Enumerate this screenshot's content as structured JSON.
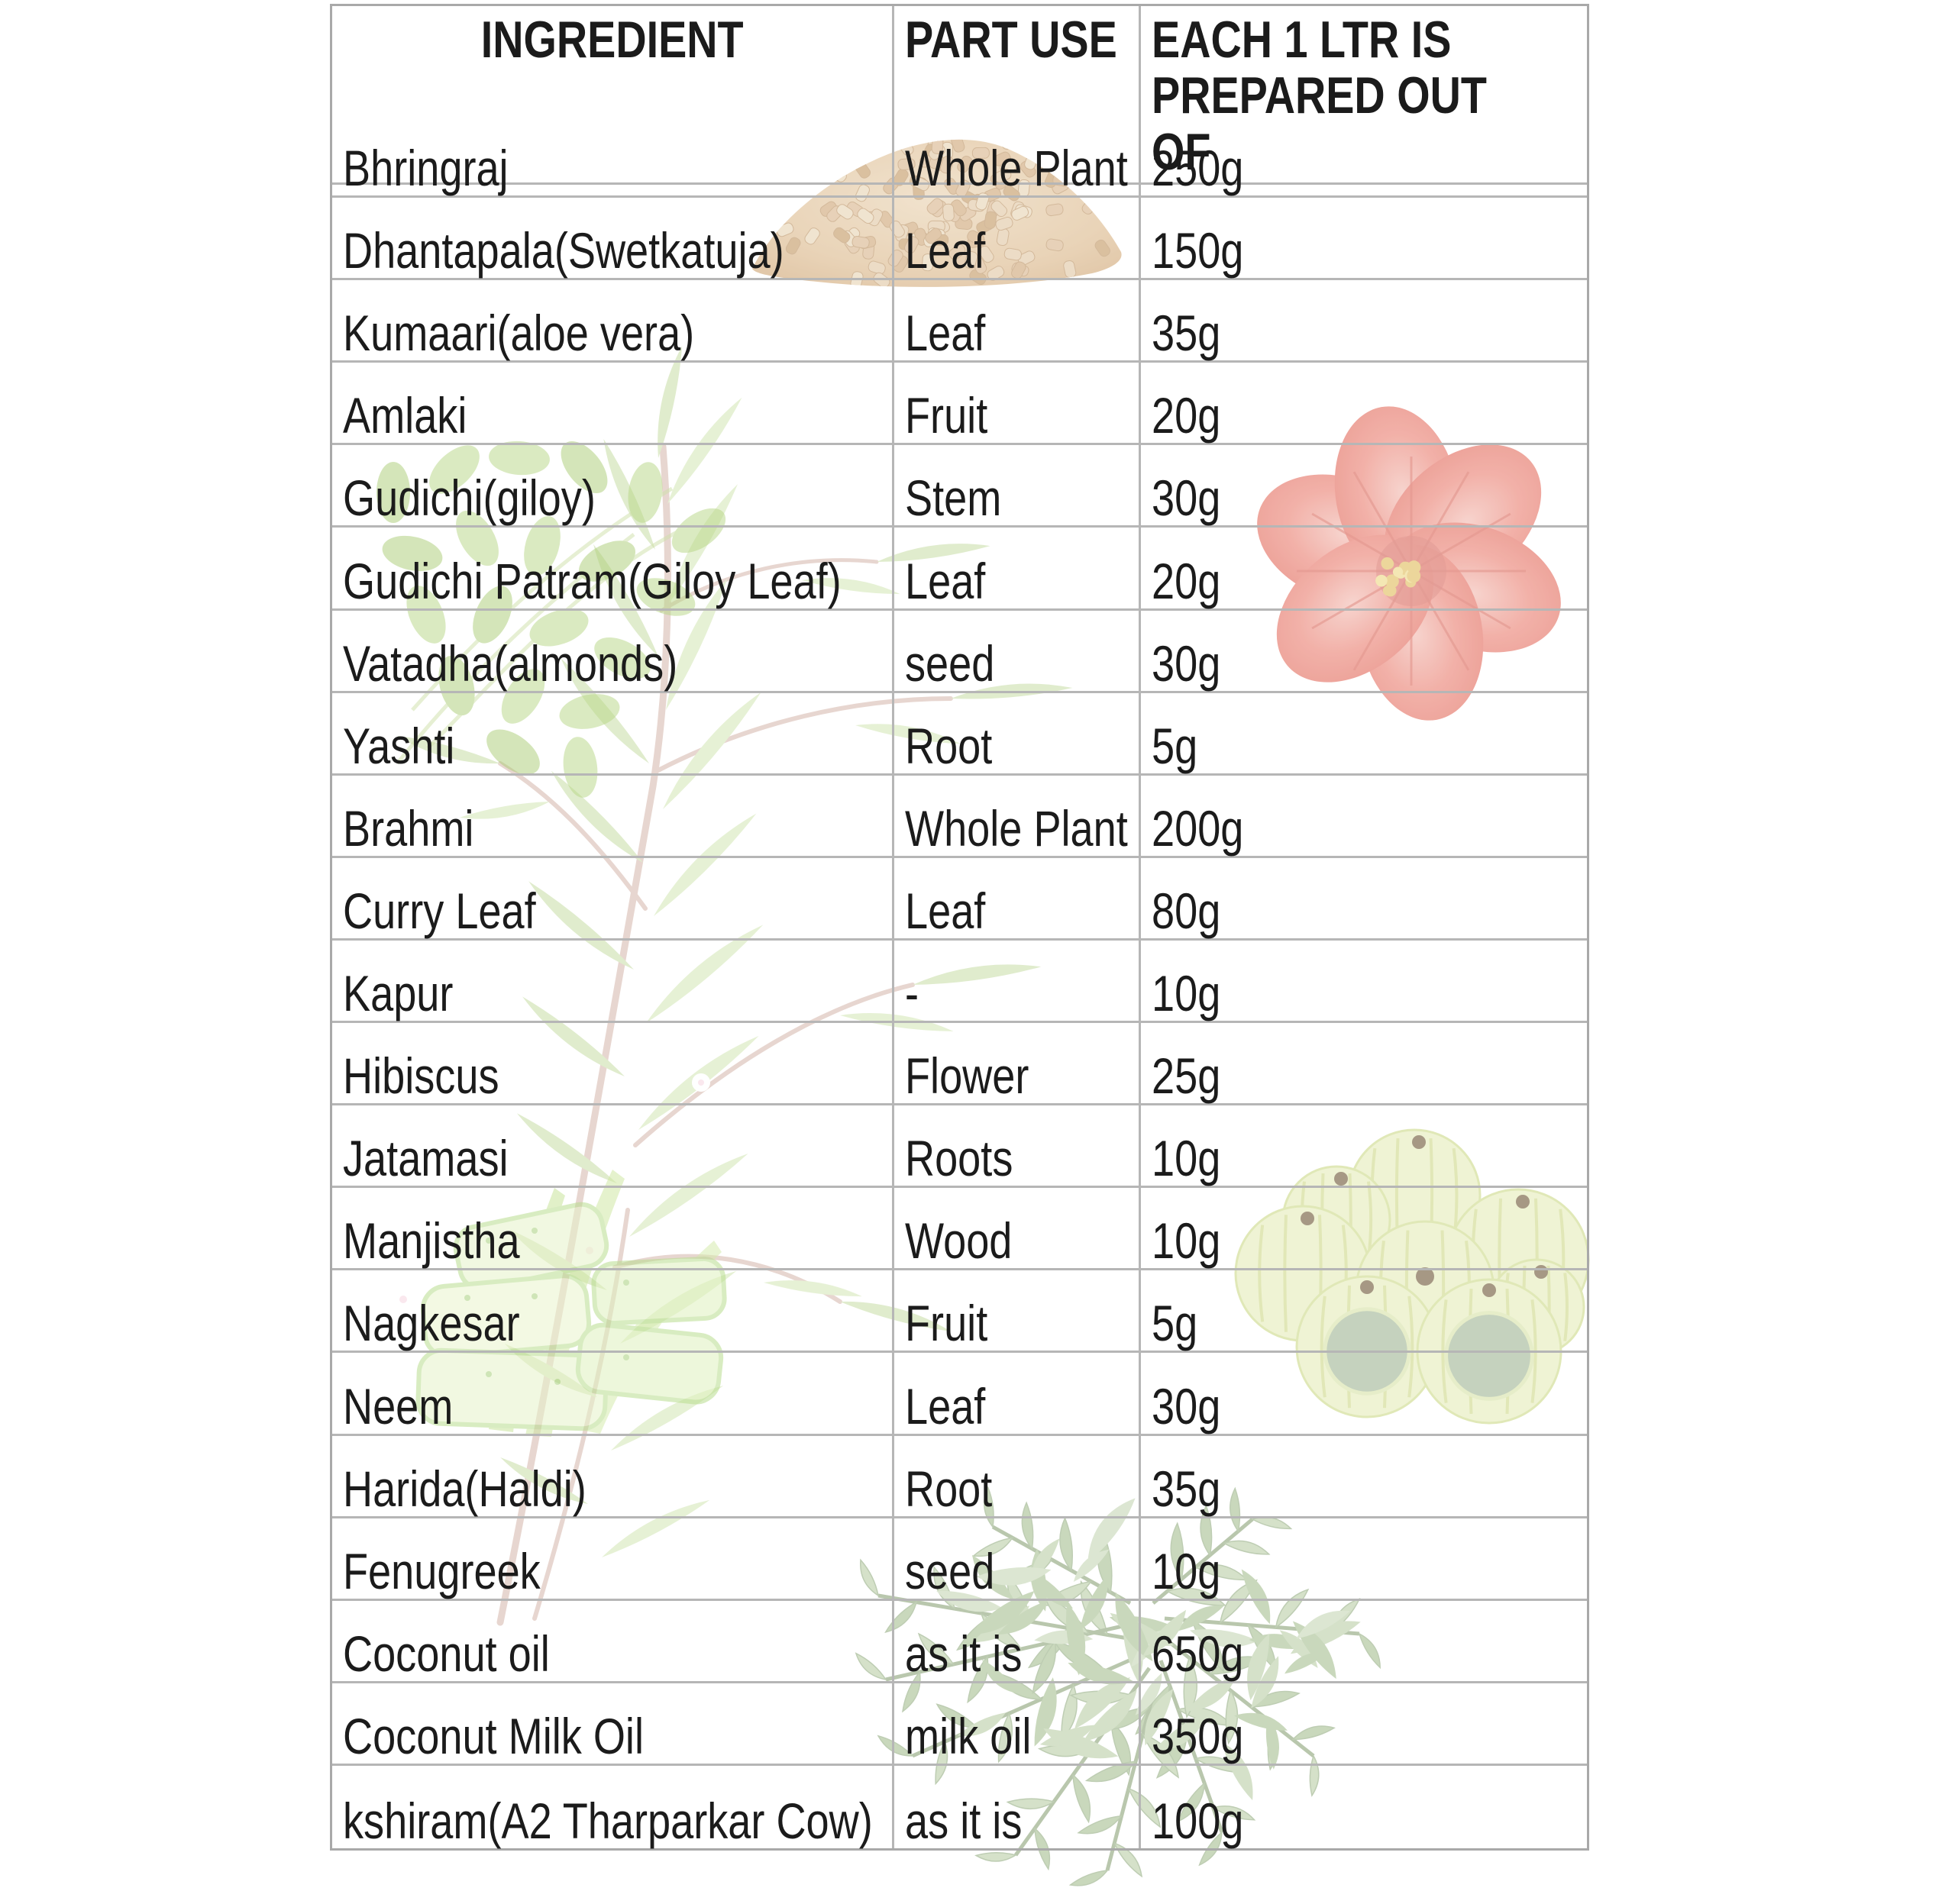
{
  "table": {
    "headers": [
      "INGREDIENT",
      "PART USE",
      "EACH 1 LTR IS PREPARED OUT OF"
    ],
    "rows": [
      {
        "ingredient": "Bhringraj",
        "part": "Whole Plant",
        "qty": "250g"
      },
      {
        "ingredient": "Dhantapala(Swetkatuja)",
        "part": "Leaf",
        "qty": "150g"
      },
      {
        "ingredient": "Kumaari(aloe vera)",
        "part": "Leaf",
        "qty": "35g"
      },
      {
        "ingredient": "Amlaki",
        "part": "Fruit",
        "qty": "20g"
      },
      {
        "ingredient": "Gudichi(giloy)",
        "part": "Stem",
        "qty": "30g"
      },
      {
        "ingredient": "Gudichi Patram(Giloy Leaf)",
        "part": "Leaf",
        "qty": "20g"
      },
      {
        "ingredient": "Vatadha(almonds)",
        "part": "seed",
        "qty": "30g"
      },
      {
        "ingredient": "Yashti",
        "part": "Root",
        "qty": "5g"
      },
      {
        "ingredient": "Brahmi",
        "part": "Whole Plant",
        "qty": "200g"
      },
      {
        "ingredient": "Curry Leaf",
        "part": "Leaf",
        "qty": "80g"
      },
      {
        "ingredient": "Kapur",
        "part": "-",
        "qty": "10g"
      },
      {
        "ingredient": "Hibiscus",
        "part": "Flower",
        "qty": "25g"
      },
      {
        "ingredient": "Jatamasi",
        "part": "Roots",
        "qty": "10g"
      },
      {
        "ingredient": "Manjistha",
        "part": "Wood",
        "qty": "10g"
      },
      {
        "ingredient": "Nagkesar",
        "part": "Fruit",
        "qty": "5g"
      },
      {
        "ingredient": "Neem",
        "part": "Leaf",
        "qty": "30g"
      },
      {
        "ingredient": "Harida(Haldi)",
        "part": "Root",
        "qty": "35g"
      },
      {
        "ingredient": "Fenugreek",
        "part": "seed",
        "qty": "10g"
      },
      {
        "ingredient": "Coconut oil",
        "part": "as it is",
        "qty": "650g"
      },
      {
        "ingredient": "Coconut Milk Oil",
        "part": "milk oil",
        "qty": "350g"
      },
      {
        "ingredient": "kshiram(A2 Tharparkar Cow)",
        "part": "as it is",
        "qty": "100g"
      }
    ]
  },
  "decorations": {
    "fenugreek_seeds": "fenugreek-seeds-icon",
    "hibiscus_flower": "hibiscus-flower-icon",
    "herb_plant": "herb-plant-icon",
    "brahmi_sprig": "brahmi-sprig-icon",
    "aloe_vera": "aloe-vera-icon",
    "amla_fruits": "amla-fruits-icon",
    "curry_leaves": "curry-leaves-icon"
  },
  "colors": {
    "background": "#ffffff",
    "grid_line": "#b6b6b6",
    "text": "#1b1b1b",
    "fenugreek_tan": "#d9b183",
    "hibiscus_pink": "#f0a49a",
    "herb_green": "#c4dd9b",
    "aloe_green": "#dff0c0",
    "amla_green": "#edf2cd",
    "curry_green": "#a6bf90"
  }
}
